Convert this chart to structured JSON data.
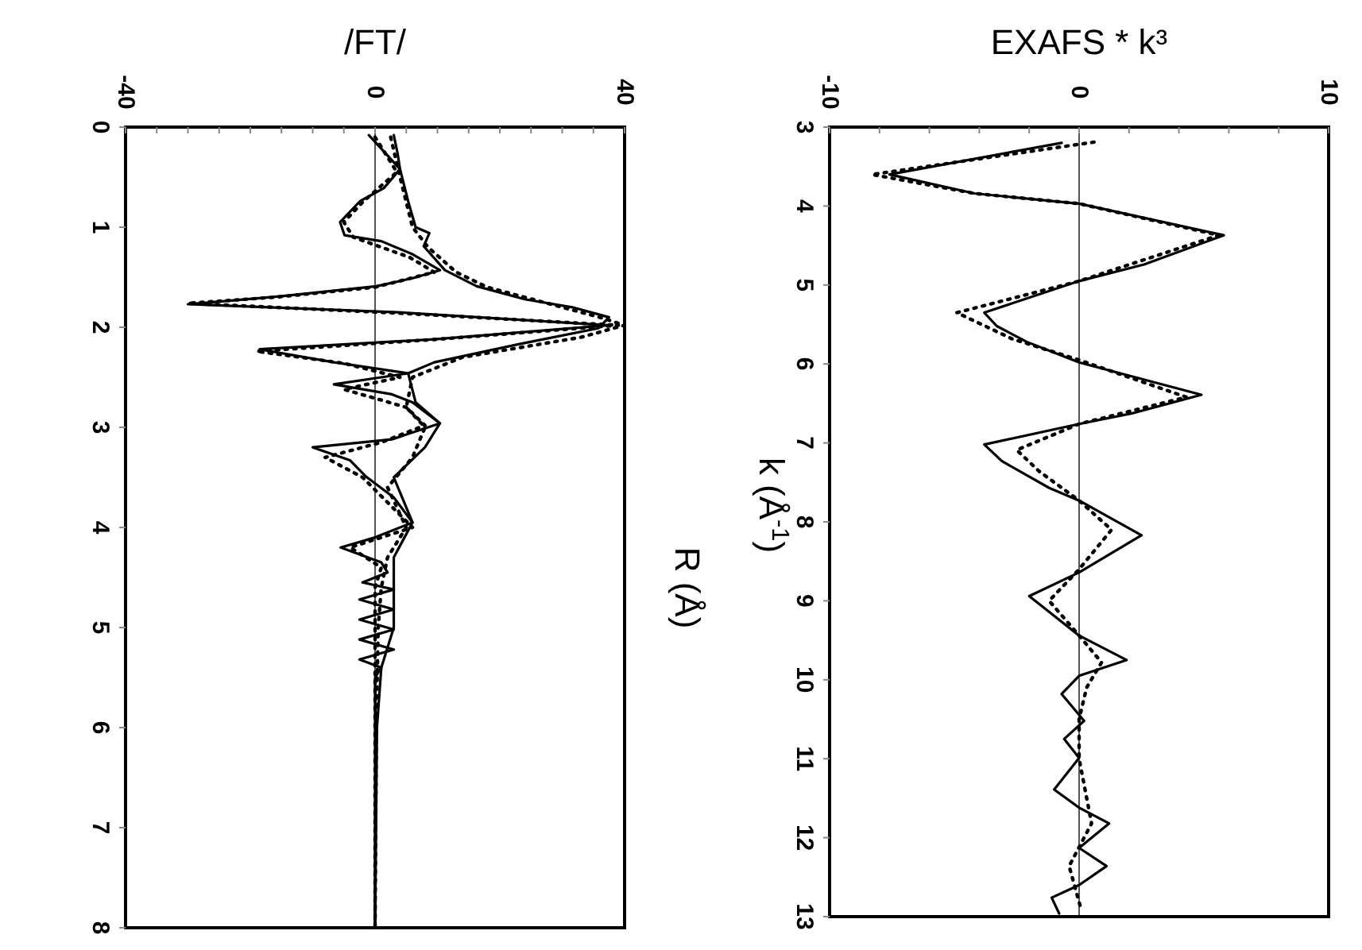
{
  "chart_data": [
    {
      "type": "line",
      "xlabel": "/FT/",
      "ylabel": "R (Å)",
      "ylim": [
        8,
        0
      ],
      "yticks": [
        0,
        1,
        2,
        3,
        4,
        5,
        6,
        7,
        8
      ],
      "xlim": [
        -40,
        40
      ],
      "xticks": [
        -40,
        {
          "value": -35,
          "label": null
        },
        {
          "value": -30,
          "label": null
        },
        {
          "value": -25,
          "label": null
        },
        {
          "value": -20,
          "label": null
        },
        {
          "value": -15,
          "label": null
        },
        {
          "value": -10,
          "label": null
        },
        {
          "value": -5,
          "label": null
        },
        0,
        {
          "value": 5,
          "label": null
        },
        {
          "value": 10,
          "label": null
        },
        {
          "value": 15,
          "label": null
        },
        {
          "value": 20,
          "label": null
        },
        {
          "value": 25,
          "label": null
        },
        {
          "value": 30,
          "label": null
        },
        {
          "value": 35,
          "label": null
        },
        40
      ],
      "ref_lines": [
        {
          "axis": "x",
          "value": 0,
          "color": "#555555"
        }
      ],
      "series": [
        {
          "color": "#000000",
          "line_style": "solid",
          "values": [
            0.08,
            0.42,
            0.61,
            0.74,
            0.95,
            1.08,
            1.14,
            1.27,
            1.43,
            1.51,
            1.59,
            1.69,
            1.77,
            1.85,
            1.98,
            2.12,
            2.22,
            2.35,
            2.46,
            2.57,
            2.67,
            2.75,
            2.96,
            3.12,
            3.2,
            3.33,
            3.49,
            3.7,
            3.95,
            4.1,
            4.2,
            4.35,
            4.45,
            4.55,
            4.62,
            4.72,
            4.82,
            4.92,
            5.02,
            5.12,
            5.22,
            5.32,
            5.4,
            5.5,
            6,
            7,
            8
          ],
          "x": [
            -1,
            4,
            1.4,
            -2.4,
            -5.6,
            -4.9,
            1,
            6,
            10.4,
            6,
            0.2,
            -15,
            -30,
            3.6,
            37.5,
            9.5,
            -18.5,
            -6.6,
            5.3,
            -6.6,
            2.7,
            6,
            10.4,
            2.7,
            -10,
            -4,
            -1.5,
            3,
            6,
            0,
            -5.5,
            1,
            2,
            -2,
            3,
            -2.5,
            3,
            -2.5,
            3,
            -2.5,
            3,
            -2.5,
            1,
            0,
            0,
            0,
            0
          ]
        },
        {
          "color": "#000000",
          "line_style": "solid",
          "values": [
            0.08,
            0.26,
            0.42,
            0.74,
            1,
            1.06,
            1.19,
            1.43,
            1.59,
            1.72,
            1.8,
            1.9,
            2.01,
            2.17,
            2.35,
            2.46,
            2.75,
            2.96,
            3.2,
            3.5,
            3.95,
            4.3,
            4.6,
            5,
            5.4,
            6,
            8
          ],
          "x": [
            3,
            3.6,
            4,
            5.3,
            6.5,
            8.7,
            7.8,
            11.2,
            16.3,
            24,
            31.6,
            37.5,
            35.8,
            23,
            9.5,
            5.3,
            6.5,
            10.4,
            8,
            3,
            6,
            3,
            3,
            3,
            1,
            0.3,
            0
          ]
        },
        {
          "color": "#000000",
          "line_style": "dotted",
          "values": [
            0.1,
            0.45,
            0.75,
            0.95,
            1.1,
            1.3,
            1.45,
            1.6,
            1.7,
            1.76,
            1.86,
            1.98,
            2.12,
            2.24,
            2.36,
            2.5,
            2.62,
            2.8,
            2.98,
            3.15,
            3.3,
            3.5,
            3.75,
            4.0,
            4.2,
            4.4,
            4.6,
            4.8,
            5.0,
            5.5,
            6,
            8
          ],
          "x": [
            0,
            3.5,
            -2,
            -5,
            -3.5,
            5.5,
            9.5,
            0,
            -16,
            -30,
            4,
            39,
            10,
            -19,
            -5,
            4,
            -5,
            5,
            8,
            1,
            -8,
            -2,
            2,
            6,
            -4,
            1,
            0,
            0,
            0,
            0,
            0,
            0
          ]
        },
        {
          "color": "#000000",
          "line_style": "dotted",
          "values": [
            0.1,
            0.5,
            1.0,
            1.2,
            1.45,
            1.6,
            1.75,
            1.9,
            1.98,
            2.1,
            2.3,
            2.5,
            2.8,
            3.0,
            3.3,
            3.6,
            4.0,
            4.3,
            4.6,
            5.0,
            6,
            8
          ],
          "x": [
            2.5,
            4,
            6,
            8.5,
            13,
            18,
            27,
            36,
            40,
            33,
            14,
            6,
            5,
            8,
            6,
            2,
            5,
            2,
            1,
            0.5,
            0.2,
            0
          ]
        }
      ]
    },
    {
      "type": "line",
      "xlabel": "EXAFS * k³",
      "ylabel": "k (Å$^{-1}$)",
      "ylim": [
        13,
        3
      ],
      "yticks": [
        3,
        4,
        5,
        6,
        7,
        8,
        9,
        10,
        11,
        12,
        13
      ],
      "xlim": [
        -10,
        10
      ],
      "xticks": [
        -10,
        {
          "value": -8,
          "label": null
        },
        {
          "value": -6,
          "label": null
        },
        {
          "value": -4,
          "label": null
        },
        {
          "value": -2,
          "label": null
        },
        0,
        {
          "value": 2,
          "label": null
        },
        {
          "value": 4,
          "label": null
        },
        {
          "value": 6,
          "label": null
        },
        {
          "value": 8,
          "label": null
        },
        10
      ],
      "ref_lines": [
        {
          "axis": "x",
          "value": 0,
          "color": "#555555"
        }
      ],
      "series": [
        {
          "color": "#000000",
          "line_style": "solid",
          "values": [
            3.2,
            3.6,
            3.84,
            3.97,
            4.37,
            4.74,
            4.95,
            5.35,
            5.52,
            5.72,
            5.98,
            6.39,
            6.62,
            6.76,
            7.02,
            7.23,
            7.57,
            7.73,
            8.17,
            8.64,
            8.94,
            9.44,
            9.75,
            9.95,
            10.18,
            10.52,
            10.75,
            10.99,
            11.39,
            11.62,
            11.82,
            12.13,
            12.36,
            12.6,
            12.76,
            12.96
          ],
          "x": [
            -0.7,
            -7.6,
            -4.2,
            0,
            5.8,
            2.6,
            0,
            -3.8,
            -3.3,
            -2.1,
            0,
            4.9,
            2.2,
            0,
            -3.8,
            -3.1,
            -1.2,
            0,
            2.5,
            0,
            -2,
            0,
            1.9,
            0,
            -0.7,
            0.2,
            -0.6,
            0,
            -1,
            0,
            1.2,
            0,
            1.1,
            0,
            -1.1,
            -0.8
          ]
        },
        {
          "color": "#000000",
          "line_style": "dotted",
          "values": [
            3.19,
            3.6,
            3.84,
            3.97,
            4.37,
            4.95,
            5.35,
            5.68,
            5.95,
            6.42,
            6.76,
            7.09,
            7.36,
            7.73,
            8.1,
            8.6,
            9.0,
            9.44,
            9.78,
            10.1,
            10.5,
            11.0,
            11.82,
            12.36,
            12.93
          ],
          "x": [
            0.6,
            -8.3,
            -4.2,
            0,
            5.6,
            0,
            -4.9,
            -2.7,
            0,
            4.3,
            0,
            -2.5,
            -1.6,
            0,
            1.3,
            0,
            -1.2,
            0,
            0.9,
            0.3,
            0,
            0,
            0.5,
            -0.4,
            0.1
          ]
        }
      ]
    }
  ]
}
